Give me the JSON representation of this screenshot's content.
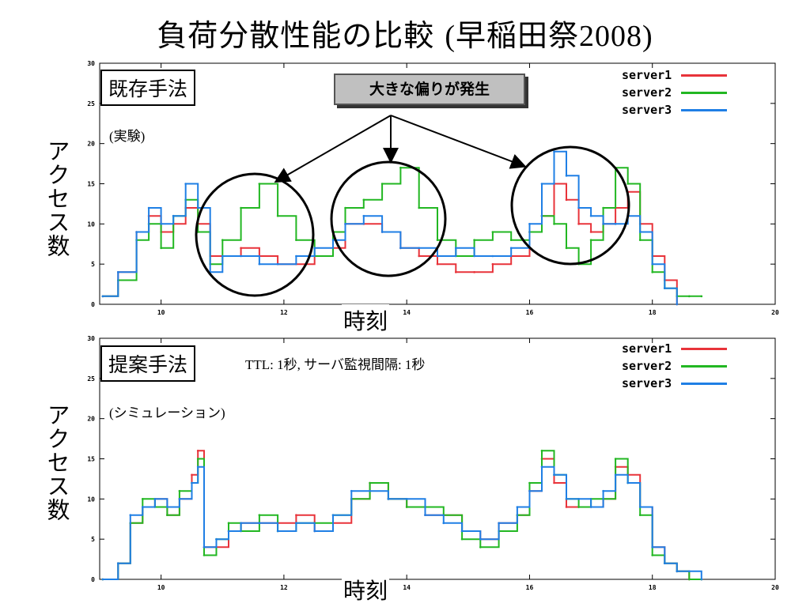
{
  "title": {
    "jp": "負荷分散性能の比較",
    "paren": "(早稲田祭2008)"
  },
  "callout": "大きな偏りが発生",
  "colors": {
    "server1": "#e8333a",
    "server2": "#22b722",
    "server3": "#1f7fe5"
  },
  "panels": [
    {
      "method": "既存手法",
      "note": "(実験)",
      "params": "",
      "ylabel": "アクセス数",
      "xlabel": "時刻",
      "legend": [
        "server1",
        "server2",
        "server3"
      ]
    },
    {
      "method": "提案手法",
      "note": "(シミュレーション)",
      "params": "TTL: 1秒,  サーバ監視間隔: 1秒",
      "ylabel": "アクセス数",
      "xlabel": "時刻",
      "legend": [
        "server1",
        "server2",
        "server3"
      ]
    }
  ],
  "chart_data": [
    {
      "type": "line",
      "title": "",
      "xlabel": "時刻",
      "ylabel": "アクセス数",
      "xlim": [
        9,
        20
      ],
      "ylim": [
        0,
        30
      ],
      "xticks": [
        10,
        12,
        14,
        16,
        18,
        20
      ],
      "yticks": [
        0,
        5,
        10,
        15,
        20,
        25,
        30
      ],
      "legend_position": "top-right",
      "series": [
        {
          "name": "server1",
          "x": [
            9.05,
            9.3,
            9.6,
            9.8,
            10.0,
            10.2,
            10.4,
            10.6,
            10.8,
            11.0,
            11.3,
            11.6,
            11.9,
            12.2,
            12.5,
            12.8,
            13.0,
            13.3,
            13.6,
            13.9,
            14.2,
            14.5,
            14.8,
            15.1,
            15.4,
            15.7,
            16.0,
            16.2,
            16.4,
            16.6,
            16.8,
            17.0,
            17.2,
            17.4,
            17.6,
            17.8,
            18.0,
            18.2,
            18.4
          ],
          "y": [
            1,
            4,
            9,
            11,
            9,
            10,
            12,
            10,
            6,
            6,
            7,
            6,
            5,
            5,
            6,
            7,
            10,
            10,
            9,
            7,
            6,
            5,
            4,
            4,
            5,
            6,
            9,
            11,
            15,
            13,
            10,
            9,
            10,
            12,
            14,
            10,
            6,
            3,
            0
          ]
        },
        {
          "name": "server2",
          "x": [
            9.05,
            9.3,
            9.6,
            9.8,
            10.0,
            10.2,
            10.4,
            10.6,
            10.8,
            11.0,
            11.3,
            11.6,
            11.9,
            12.2,
            12.5,
            12.8,
            13.0,
            13.3,
            13.6,
            13.9,
            14.2,
            14.5,
            14.8,
            15.1,
            15.4,
            15.7,
            16.0,
            16.2,
            16.4,
            16.6,
            16.8,
            17.0,
            17.2,
            17.4,
            17.6,
            17.8,
            18.0,
            18.2,
            18.4,
            18.6,
            18.8
          ],
          "y": [
            1,
            3,
            8,
            10,
            7,
            11,
            13,
            9,
            5,
            8,
            12,
            15,
            11,
            8,
            6,
            9,
            12,
            13,
            15,
            17,
            12,
            8,
            6,
            8,
            9,
            8,
            9,
            11,
            10,
            7,
            5,
            8,
            12,
            17,
            15,
            8,
            4,
            2,
            1,
            1,
            1
          ]
        },
        {
          "name": "server3",
          "x": [
            9.05,
            9.3,
            9.6,
            9.8,
            10.0,
            10.2,
            10.4,
            10.6,
            10.8,
            11.0,
            11.3,
            11.6,
            11.9,
            12.2,
            12.5,
            12.8,
            13.0,
            13.3,
            13.6,
            13.9,
            14.2,
            14.5,
            14.8,
            15.1,
            15.4,
            15.7,
            16.0,
            16.2,
            16.4,
            16.6,
            16.8,
            17.0,
            17.2,
            17.4,
            17.6,
            17.8,
            18.0,
            18.2,
            18.4
          ],
          "y": [
            1,
            4,
            9,
            12,
            10,
            11,
            15,
            12,
            4,
            6,
            6,
            5,
            5,
            6,
            7,
            8,
            10,
            11,
            9,
            7,
            7,
            6,
            7,
            6,
            6,
            7,
            10,
            15,
            19,
            16,
            12,
            11,
            10,
            10,
            11,
            9,
            5,
            2,
            0
          ]
        }
      ]
    },
    {
      "type": "line",
      "title": "",
      "xlabel": "時刻",
      "ylabel": "アクセス数",
      "xlim": [
        9,
        20
      ],
      "ylim": [
        0,
        30
      ],
      "xticks": [
        10,
        12,
        14,
        16,
        18,
        20
      ],
      "yticks": [
        0,
        5,
        10,
        15,
        20,
        25,
        30
      ],
      "legend_position": "top-right",
      "series": [
        {
          "name": "server1",
          "x": [
            9.05,
            9.3,
            9.5,
            9.7,
            9.9,
            10.1,
            10.3,
            10.5,
            10.6,
            10.7,
            10.9,
            11.1,
            11.3,
            11.6,
            11.9,
            12.2,
            12.5,
            12.8,
            13.1,
            13.4,
            13.7,
            14.0,
            14.3,
            14.6,
            14.9,
            15.2,
            15.5,
            15.8,
            16.0,
            16.2,
            16.4,
            16.6,
            16.8,
            17.0,
            17.2,
            17.4,
            17.6,
            17.8,
            18.0,
            18.2,
            18.4,
            18.6,
            18.8
          ],
          "y": [
            0,
            2,
            7,
            9,
            10,
            8,
            10,
            13,
            16,
            4,
            4,
            6,
            7,
            7,
            7,
            8,
            6,
            7,
            10,
            12,
            10,
            9,
            8,
            8,
            6,
            5,
            7,
            8,
            11,
            15,
            12,
            9,
            9,
            9,
            10,
            14,
            13,
            9,
            4,
            2,
            1,
            0,
            0
          ]
        },
        {
          "name": "server2",
          "x": [
            9.05,
            9.3,
            9.5,
            9.7,
            9.9,
            10.1,
            10.3,
            10.5,
            10.6,
            10.7,
            10.9,
            11.1,
            11.3,
            11.6,
            11.9,
            12.2,
            12.5,
            12.8,
            13.1,
            13.4,
            13.7,
            14.0,
            14.3,
            14.6,
            14.9,
            15.2,
            15.5,
            15.8,
            16.0,
            16.2,
            16.4,
            16.6,
            16.8,
            17.0,
            17.2,
            17.4,
            17.6,
            17.8,
            18.0,
            18.2,
            18.4,
            18.6,
            18.8
          ],
          "y": [
            0,
            2,
            7,
            10,
            9,
            8,
            11,
            12,
            15,
            3,
            5,
            7,
            6,
            8,
            6,
            7,
            7,
            8,
            10,
            12,
            10,
            9,
            9,
            8,
            5,
            4,
            6,
            8,
            12,
            16,
            13,
            10,
            9,
            10,
            10,
            15,
            12,
            8,
            3,
            2,
            1,
            0,
            0
          ]
        },
        {
          "name": "server3",
          "x": [
            9.05,
            9.3,
            9.5,
            9.7,
            9.9,
            10.1,
            10.3,
            10.5,
            10.6,
            10.7,
            10.9,
            11.1,
            11.3,
            11.6,
            11.9,
            12.2,
            12.5,
            12.8,
            13.1,
            13.4,
            13.7,
            14.0,
            14.3,
            14.6,
            14.9,
            15.2,
            15.5,
            15.8,
            16.0,
            16.2,
            16.4,
            16.6,
            16.8,
            17.0,
            17.2,
            17.4,
            17.6,
            17.8,
            18.0,
            18.2,
            18.4,
            18.6,
            18.8
          ],
          "y": [
            0,
            2,
            8,
            9,
            10,
            9,
            10,
            12,
            14,
            4,
            5,
            6,
            7,
            7,
            6,
            7,
            6,
            8,
            11,
            11,
            10,
            10,
            8,
            7,
            6,
            5,
            7,
            9,
            11,
            14,
            13,
            10,
            10,
            9,
            11,
            13,
            12,
            9,
            4,
            2,
            1,
            1,
            0
          ]
        }
      ]
    }
  ]
}
